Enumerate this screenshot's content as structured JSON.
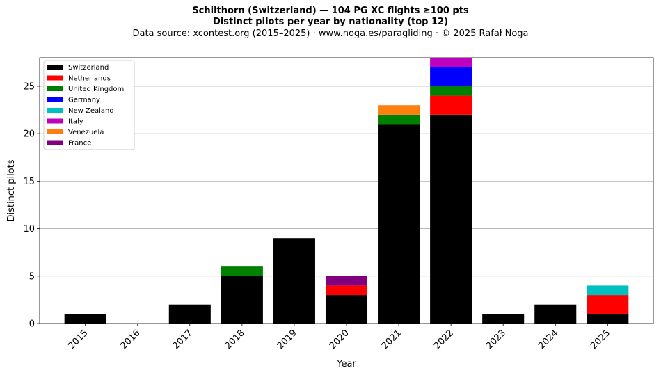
{
  "title_line1": "Schilthorn (Switzerland)  —  104 PG XC flights ≥100 pts",
  "title_line2": "Distinct pilots per year by nationality (top 12)",
  "subtitle": "Data source: xcontest.org (2015–2025)  ·  www.noga.es/paragliding  ·  © 2025 Rafał Noga",
  "chart_data": {
    "type": "bar",
    "stacked": true,
    "title": "Schilthorn (Switzerland)  —  104 PG XC flights ≥100 pts",
    "xlabel": "Year",
    "ylabel": "Distinct pilots",
    "ylim": [
      0,
      28
    ],
    "yticks": [
      0,
      5,
      10,
      15,
      20,
      25
    ],
    "grid": "horizontal",
    "legend_position": "top-left",
    "categories": [
      "2015",
      "2016",
      "2017",
      "2018",
      "2019",
      "2020",
      "2021",
      "2022",
      "2023",
      "2024",
      "2025"
    ],
    "series": [
      {
        "name": "Switzerland",
        "color": "#000000",
        "values": [
          1,
          0,
          2,
          5,
          9,
          3,
          21,
          22,
          1,
          2,
          1
        ]
      },
      {
        "name": "Netherlands",
        "color": "#ff0000",
        "values": [
          0,
          0,
          0,
          0,
          0,
          1,
          0,
          2,
          0,
          0,
          2
        ]
      },
      {
        "name": "United Kingdom",
        "color": "#008000",
        "values": [
          0,
          0,
          0,
          1,
          0,
          0,
          1,
          1,
          0,
          0,
          0
        ]
      },
      {
        "name": "Germany",
        "color": "#0000ff",
        "values": [
          0,
          0,
          0,
          0,
          0,
          0,
          0,
          2,
          0,
          0,
          0
        ]
      },
      {
        "name": "New Zealand",
        "color": "#00bfbf",
        "values": [
          0,
          0,
          0,
          0,
          0,
          0,
          0,
          0,
          0,
          0,
          1
        ]
      },
      {
        "name": "Italy",
        "color": "#bf00bf",
        "values": [
          0,
          0,
          0,
          0,
          0,
          0,
          0,
          1,
          0,
          0,
          0
        ]
      },
      {
        "name": "Venezuela",
        "color": "#ff7f0e",
        "values": [
          0,
          0,
          0,
          0,
          0,
          0,
          1,
          0,
          0,
          0,
          0
        ]
      },
      {
        "name": "France",
        "color": "#800080",
        "values": [
          0,
          0,
          0,
          0,
          0,
          1,
          0,
          0,
          0,
          0,
          0
        ]
      }
    ]
  }
}
